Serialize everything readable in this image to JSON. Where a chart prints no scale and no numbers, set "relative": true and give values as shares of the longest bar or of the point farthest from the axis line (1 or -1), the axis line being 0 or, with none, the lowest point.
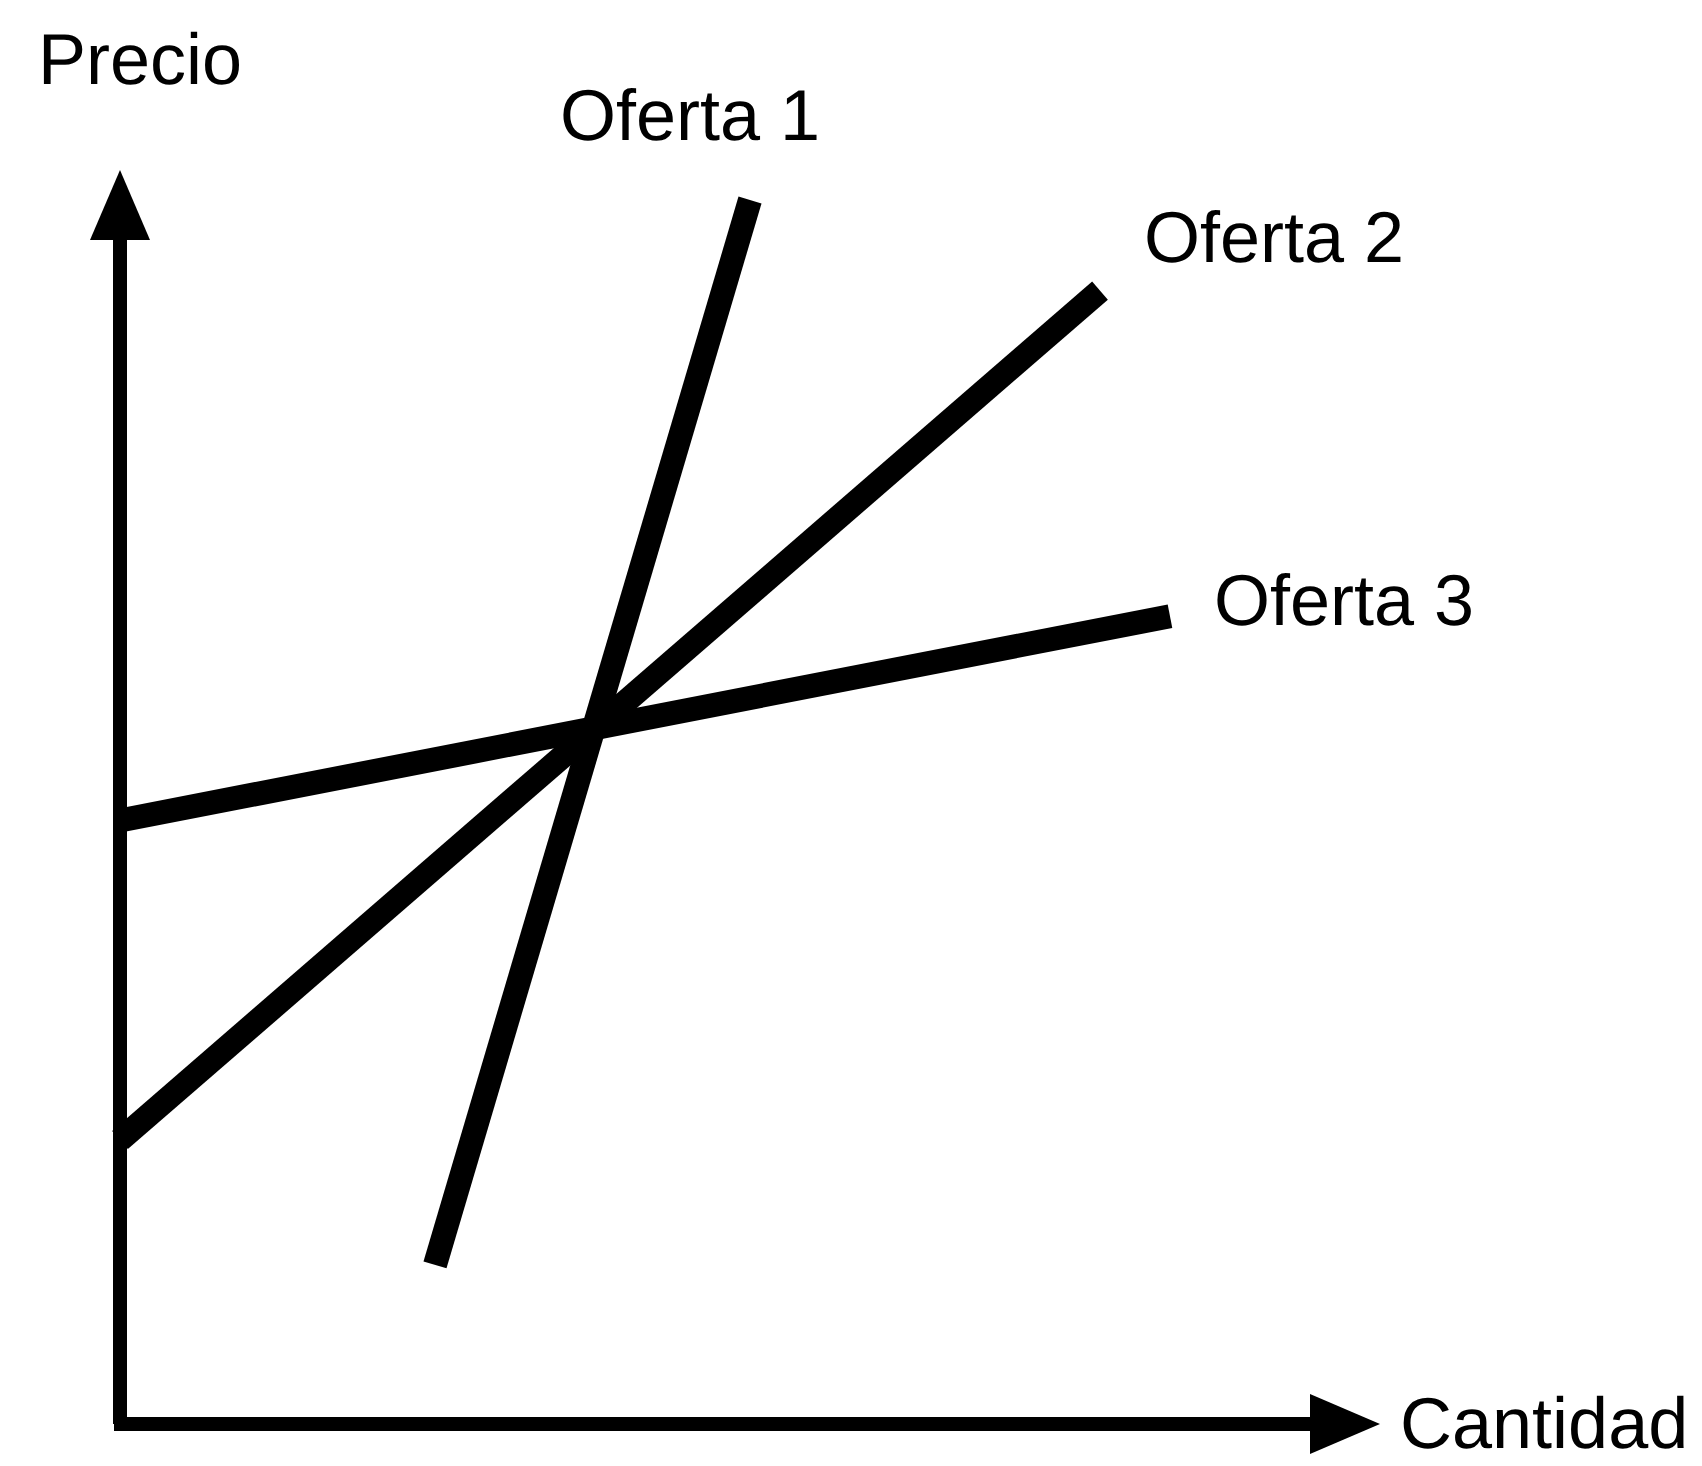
{
  "chart_data": {
    "type": "line",
    "relative": true,
    "xlabel": "Cantidad",
    "ylabel": "Precio",
    "tick_labels": false,
    "legend": false,
    "marker": "none",
    "line_style": "solid",
    "categories": [
      null,
      null,
      null,
      null,
      null,
      null,
      null,
      null,
      null,
      null,
      null,
      null,
      null,
      null,
      null,
      null,
      null,
      null,
      null,
      null,
      null,
      null,
      null,
      null,
      null,
      null,
      null,
      null,
      null,
      null,
      null,
      null,
      null,
      null,
      null,
      null,
      null
    ],
    "series": [
      {
        "name": "Oferta 1",
        "color": "#000000",
        "values": [
          null,
          null,
          null,
          null,
          null,
          null,
          null,
          null,
          null,
          0.13,
          null,
          null,
          null,
          null,
          null,
          null,
          null,
          null,
          1,
          null,
          null,
          null,
          null,
          null,
          null,
          null,
          null,
          null,
          null,
          null,
          null,
          null,
          null,
          null,
          null,
          null,
          null
        ]
      },
      {
        "name": "Oferta 2",
        "color": "#000000",
        "values": [
          0.232,
          null,
          null,
          null,
          null,
          null,
          null,
          null,
          null,
          null,
          null,
          null,
          null,
          null,
          null,
          null,
          null,
          null,
          null,
          null,
          null,
          null,
          null,
          null,
          null,
          null,
          null,
          null,
          0.926,
          null,
          null,
          null,
          null,
          null,
          null,
          null,
          null
        ]
      },
      {
        "name": "Oferta 3",
        "color": "#000000",
        "values": [
          0.493,
          null,
          null,
          null,
          null,
          null,
          null,
          null,
          null,
          null,
          null,
          null,
          null,
          null,
          null,
          null,
          null,
          null,
          null,
          null,
          null,
          null,
          null,
          null,
          null,
          null,
          null,
          null,
          null,
          null,
          0.66,
          null,
          null,
          null,
          null,
          null,
          null
        ]
      }
    ]
  }
}
